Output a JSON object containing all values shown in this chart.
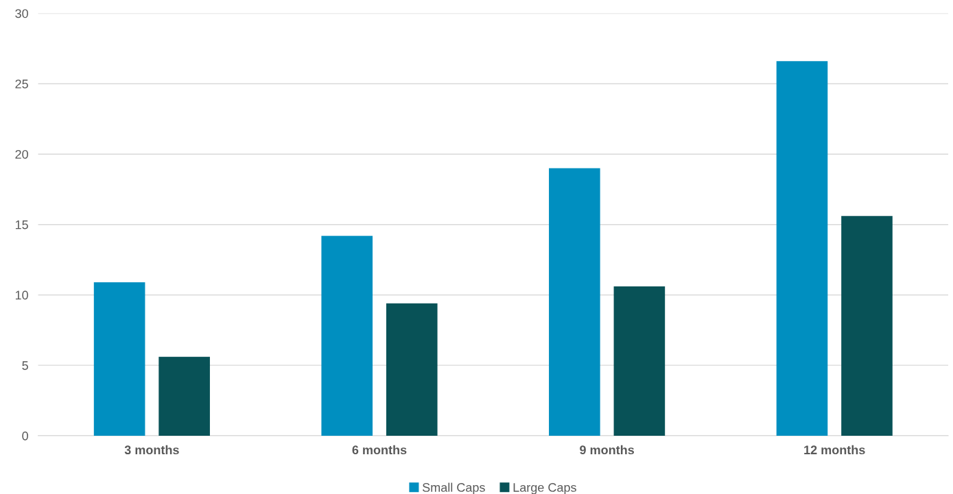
{
  "chart_data": {
    "type": "bar",
    "categories": [
      "3 months",
      "6 months",
      "9 months",
      "12 months"
    ],
    "series": [
      {
        "name": "Small Caps",
        "color": "#008fc0",
        "values": [
          10.9,
          14.2,
          19.0,
          26.6
        ]
      },
      {
        "name": "Large Caps",
        "color": "#085257",
        "values": [
          5.6,
          9.4,
          10.6,
          15.6
        ]
      }
    ],
    "ylim": [
      0,
      30
    ],
    "yticks": [
      0,
      5,
      10,
      15,
      20,
      25,
      30
    ],
    "grid": "y",
    "legend": "bottom"
  }
}
